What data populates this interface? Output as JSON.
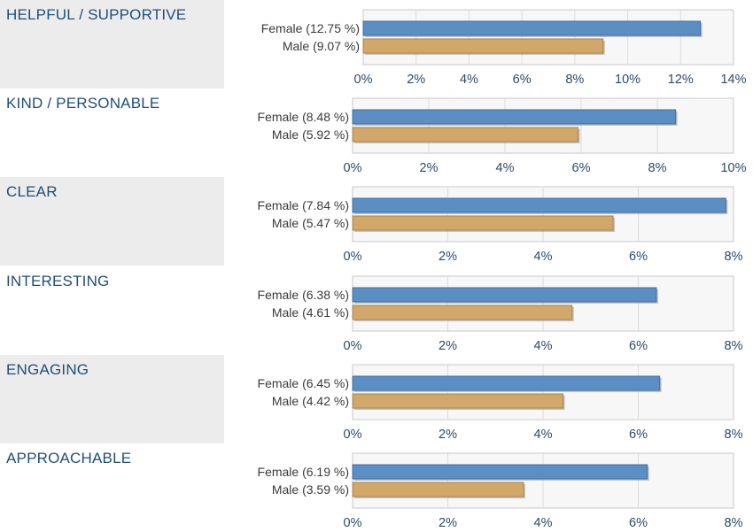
{
  "chart_data": [
    {
      "type": "bar",
      "title": "HELPFUL / SUPPORTIVE",
      "categories": [
        "Female (12.75 %)",
        "Male (9.07 %)"
      ],
      "values": [
        12.75,
        9.07
      ],
      "xlim": [
        0,
        14
      ],
      "ticks": [
        "0%",
        "2%",
        "4%",
        "6%",
        "8%",
        "10%",
        "12%",
        "14%"
      ],
      "grid": true
    },
    {
      "type": "bar",
      "title": "KIND / PERSONABLE",
      "categories": [
        "Female (8.48 %)",
        "Male (5.92 %)"
      ],
      "values": [
        8.48,
        5.92
      ],
      "xlim": [
        0,
        10
      ],
      "ticks": [
        "0%",
        "2%",
        "4%",
        "6%",
        "8%",
        "10%"
      ],
      "grid": true
    },
    {
      "type": "bar",
      "title": "CLEAR",
      "categories": [
        "Female (7.84 %)",
        "Male (5.47 %)"
      ],
      "values": [
        7.84,
        5.47
      ],
      "xlim": [
        0,
        8
      ],
      "ticks": [
        "0%",
        "2%",
        "4%",
        "6%",
        "8%"
      ],
      "grid": true
    },
    {
      "type": "bar",
      "title": "INTERESTING",
      "categories": [
        "Female (6.38 %)",
        "Male (4.61 %)"
      ],
      "values": [
        6.38,
        4.61
      ],
      "xlim": [
        0,
        8
      ],
      "ticks": [
        "0%",
        "2%",
        "4%",
        "6%",
        "8%"
      ],
      "grid": true
    },
    {
      "type": "bar",
      "title": "ENGAGING",
      "categories": [
        "Female (6.45 %)",
        "Male (4.42 %)"
      ],
      "values": [
        6.45,
        4.42
      ],
      "xlim": [
        0,
        8
      ],
      "ticks": [
        "0%",
        "2%",
        "4%",
        "6%",
        "8%"
      ],
      "grid": true
    },
    {
      "type": "bar",
      "title": "APPROACHABLE",
      "categories": [
        "Female (6.19 %)",
        "Male (3.59 %)"
      ],
      "values": [
        6.19,
        3.59
      ],
      "xlim": [
        0,
        8
      ],
      "ticks": [
        "0%",
        "2%",
        "4%",
        "6%",
        "8%"
      ],
      "grid": true
    }
  ],
  "colors": {
    "female_bar": "#5b8fc4",
    "male_bar": "#d2a86a",
    "label_text": "#1f4e79",
    "shaded_row": "#ececec"
  }
}
